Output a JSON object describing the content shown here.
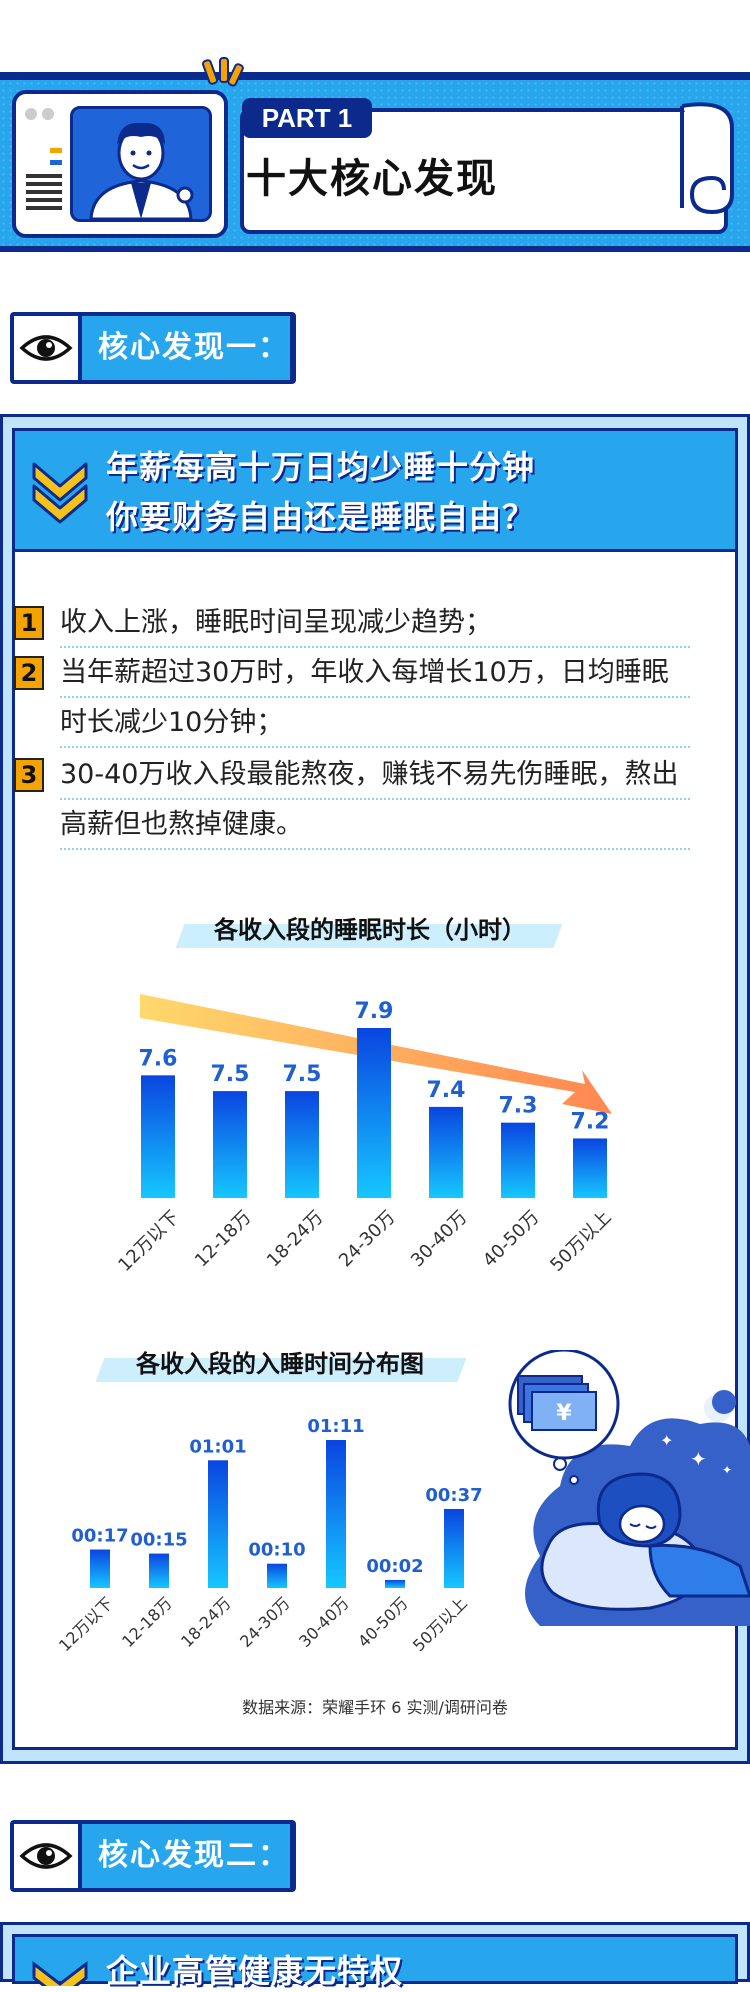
{
  "header": {
    "part_label": "PART 1",
    "title": "十大核心发现"
  },
  "section_tabs": [
    {
      "label": "核心发现一："
    },
    {
      "label": "核心发现二："
    }
  ],
  "card1": {
    "headline_1": "年薪每高十万日均少睡十分钟",
    "headline_2": "你要财务自由还是睡眠自由？",
    "points": [
      {
        "num": "1",
        "text": "收入上涨，睡眠时间呈现减少趋势；"
      },
      {
        "num": "2",
        "text": "当年薪超过30万时，年收入每增长10万，日均睡眠时长减少10分钟；"
      },
      {
        "num": "3",
        "text": "30-40万收入段最能熬夜，赚钱不易先伤睡眠，熬出高薪但也熬掉健康。"
      }
    ],
    "source": "数据来源：荣耀手环 6 实测/调研问卷",
    "illustration": {
      "currency_symbol": "¥"
    }
  },
  "card2": {
    "headline_1": "企业高管健康无特权"
  },
  "colors": {
    "navy": "#0b2a8c",
    "sky": "#27a6ee",
    "bar_top": "#0a45e0",
    "bar_bottom": "#16c7ff",
    "label_blue": "#1f5fd0",
    "accent_orange": "#f5a300"
  },
  "chart_data": [
    {
      "type": "bar",
      "title": "各收入段的睡眠时长（小时）",
      "categories": [
        "12万以下",
        "12-18万",
        "18-24万",
        "24-30万",
        "30-40万",
        "40-50万",
        "50万以上"
      ],
      "values": [
        7.6,
        7.5,
        7.5,
        7.9,
        7.4,
        7.3,
        7.2
      ],
      "labels": [
        "7.6",
        "7.5",
        "7.5",
        "7.9",
        "7.4",
        "7.3",
        "7.2"
      ],
      "ylim": [
        7.0,
        7.9
      ],
      "trend_arrow": "decreasing"
    },
    {
      "type": "bar",
      "title": "各收入段的入睡时间分布图",
      "categories": [
        "12万以下",
        "12-18万",
        "18-24万",
        "24-30万",
        "30-40万",
        "40-50万",
        "50万以上"
      ],
      "values": [
        17,
        15,
        61,
        10,
        71,
        2,
        37
      ],
      "labels": [
        "00:17",
        "00:15",
        "01:01",
        "00:10",
        "01:11",
        "00:02",
        "00:37"
      ],
      "ylim": [
        0,
        71
      ]
    }
  ]
}
